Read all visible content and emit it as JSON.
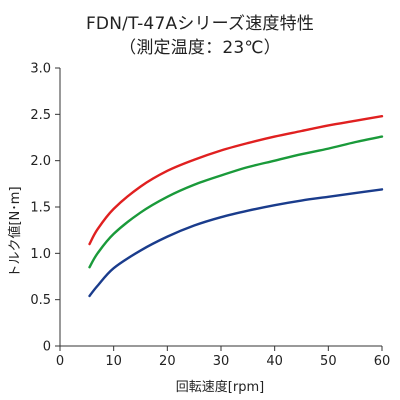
{
  "chart_data": {
    "type": "line",
    "title": "FDN/T-47Aシリーズ速度特性",
    "subtitle": "（測定温度：23℃）",
    "xlabel": "回転速度[rpm]",
    "ylabel": "トルク値[N･m]",
    "xlim": [
      0,
      60
    ],
    "ylim": [
      0,
      3.0
    ],
    "x_ticks": [
      "0",
      "10",
      "20",
      "30",
      "40",
      "50",
      "60"
    ],
    "y_ticks": [
      "0",
      "0.5",
      "1.0",
      "1.5",
      "2.0",
      "2.5",
      "3.0"
    ],
    "grid": false,
    "series": [
      {
        "color": "#e02020",
        "points": [
          [
            5.5,
            1.1
          ],
          [
            7,
            1.26
          ],
          [
            10,
            1.48
          ],
          [
            15,
            1.72
          ],
          [
            20,
            1.89
          ],
          [
            25,
            2.01
          ],
          [
            30,
            2.11
          ],
          [
            35,
            2.19
          ],
          [
            40,
            2.26
          ],
          [
            45,
            2.32
          ],
          [
            50,
            2.38
          ],
          [
            55,
            2.43
          ],
          [
            60,
            2.48
          ]
        ]
      },
      {
        "color": "#1a9a3a",
        "points": [
          [
            5.5,
            0.85
          ],
          [
            7,
            1.0
          ],
          [
            10,
            1.21
          ],
          [
            15,
            1.44
          ],
          [
            20,
            1.61
          ],
          [
            25,
            1.74
          ],
          [
            30,
            1.84
          ],
          [
            35,
            1.93
          ],
          [
            40,
            2.0
          ],
          [
            45,
            2.07
          ],
          [
            50,
            2.13
          ],
          [
            55,
            2.2
          ],
          [
            60,
            2.26
          ]
        ]
      },
      {
        "color": "#1a3c8c",
        "points": [
          [
            5.5,
            0.54
          ],
          [
            7,
            0.65
          ],
          [
            10,
            0.84
          ],
          [
            15,
            1.03
          ],
          [
            20,
            1.18
          ],
          [
            25,
            1.3
          ],
          [
            30,
            1.39
          ],
          [
            35,
            1.46
          ],
          [
            40,
            1.52
          ],
          [
            45,
            1.57
          ],
          [
            50,
            1.61
          ],
          [
            55,
            1.65
          ],
          [
            60,
            1.69
          ]
        ]
      }
    ]
  }
}
